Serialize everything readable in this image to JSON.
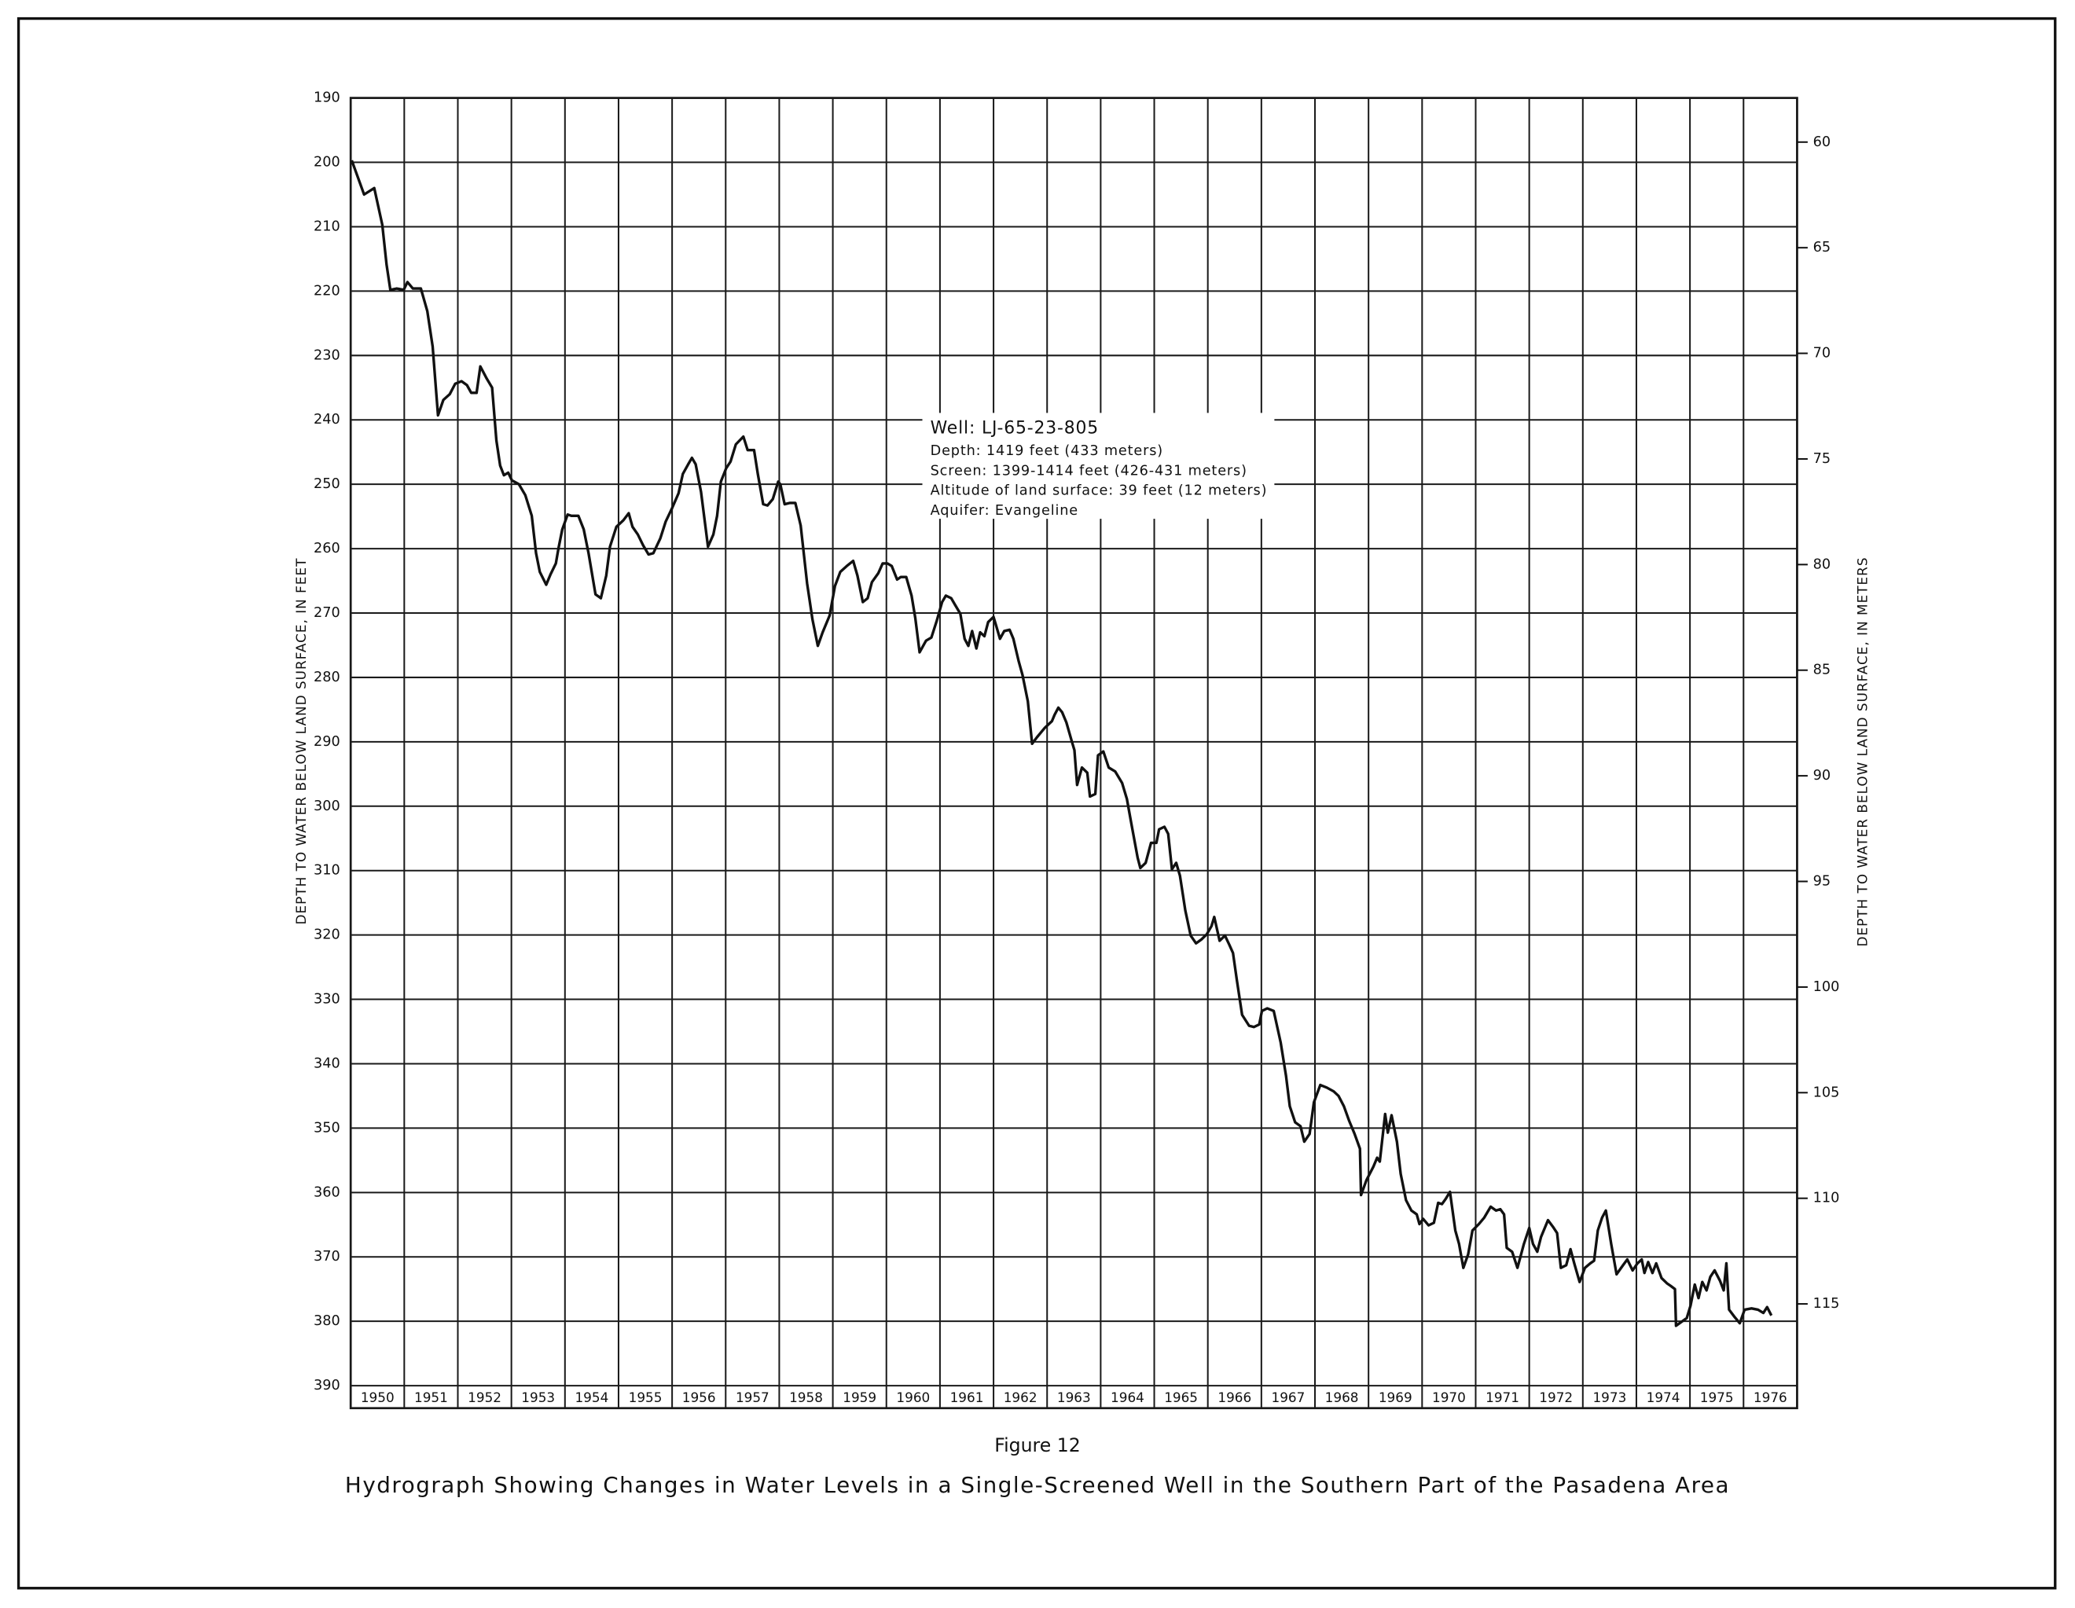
{
  "chart_data": {
    "type": "line",
    "figure_number": "Figure 12",
    "title": "Hydrograph Showing Changes in Water Levels in a Single-Screened Well in the Southern Part of the Pasadena Area",
    "ylabel": "DEPTH TO WATER BELOW LAND SURFACE, IN FEET",
    "y2label": "DEPTH TO WATER BELOW LAND SURFACE, IN METERS",
    "annotations": [
      "Well: LJ-65-23-805",
      "Depth: 1419 feet (433 meters)",
      "Screen: 1399-1414 feet (426-431 meters)",
      "Altitude of land surface: 39 feet (12 meters)",
      "Aquifer: Evangeline"
    ],
    "xlim": [
      1950,
      1977
    ],
    "xticks": [
      1950,
      1951,
      1952,
      1953,
      1954,
      1955,
      1956,
      1957,
      1958,
      1959,
      1960,
      1961,
      1962,
      1963,
      1964,
      1965,
      1966,
      1967,
      1968,
      1969,
      1970,
      1971,
      1972,
      1973,
      1974,
      1975,
      1976
    ],
    "ylim": [
      190,
      390
    ],
    "yticks": [
      190,
      200,
      210,
      220,
      230,
      240,
      250,
      260,
      270,
      280,
      290,
      300,
      310,
      320,
      330,
      340,
      350,
      360,
      370,
      380,
      390
    ],
    "y_inverted": true,
    "y2lim": [
      57.91,
      118.87
    ],
    "y2ticks": [
      60,
      65,
      70,
      75,
      80,
      85,
      90,
      95,
      100,
      105,
      110,
      115
    ],
    "grid": true,
    "color": "#111111",
    "x": [
      1950.02,
      1950.25,
      1950.44,
      1950.59,
      1950.67,
      1950.74,
      1950.86,
      1950.99,
      1951.06,
      1951.16,
      1951.31,
      1951.43,
      1951.53,
      1951.63,
      1951.73,
      1951.85,
      1951.95,
      1952.07,
      1952.17,
      1952.25,
      1952.35,
      1952.42,
      1952.54,
      1952.64,
      1952.72,
      1952.79,
      1952.86,
      1952.94,
      1953.01,
      1953.14,
      1953.26,
      1953.38,
      1953.46,
      1953.53,
      1953.65,
      1953.73,
      1953.83,
      1953.88,
      1953.95,
      1954.05,
      1954.12,
      1954.25,
      1954.35,
      1954.44,
      1954.57,
      1954.67,
      1954.77,
      1954.84,
      1954.96,
      1955.09,
      1955.19,
      1955.26,
      1955.36,
      1955.46,
      1955.56,
      1955.65,
      1955.78,
      1955.88,
      1956.0,
      1956.12,
      1956.2,
      1956.3,
      1956.37,
      1956.44,
      1956.54,
      1956.67,
      1956.77,
      1956.84,
      1956.91,
      1957.01,
      1957.09,
      1957.19,
      1957.33,
      1957.41,
      1957.53,
      1957.6,
      1957.7,
      1957.78,
      1957.88,
      1957.98,
      1958.02,
      1958.1,
      1958.2,
      1958.3,
      1958.4,
      1958.52,
      1958.62,
      1958.72,
      1958.81,
      1958.94,
      1959.04,
      1959.14,
      1959.26,
      1959.38,
      1959.46,
      1959.56,
      1959.65,
      1959.73,
      1959.85,
      1959.93,
      1960.02,
      1960.1,
      1960.2,
      1960.27,
      1960.37,
      1960.47,
      1960.54,
      1960.62,
      1960.74,
      1960.84,
      1960.94,
      1961.04,
      1961.11,
      1961.21,
      1961.28,
      1961.38,
      1961.46,
      1961.53,
      1961.6,
      1961.68,
      1961.75,
      1961.83,
      1961.9,
      1962.0,
      1962.05,
      1962.12,
      1962.2,
      1962.3,
      1962.37,
      1962.47,
      1962.54,
      1962.64,
      1962.72,
      1962.81,
      1962.96,
      1963.09,
      1963.14,
      1963.21,
      1963.28,
      1963.36,
      1963.46,
      1963.51,
      1963.56,
      1963.65,
      1963.75,
      1963.8,
      1963.9,
      1963.95,
      1964.05,
      1964.15,
      1964.27,
      1964.4,
      1964.49,
      1964.57,
      1964.69,
      1964.74,
      1964.84,
      1964.94,
      1965.04,
      1965.09,
      1965.19,
      1965.26,
      1965.33,
      1965.41,
      1965.48,
      1965.58,
      1965.68,
      1965.78,
      1965.88,
      1965.98,
      1966.07,
      1966.12,
      1966.22,
      1966.32,
      1966.4,
      1966.47,
      1966.54,
      1966.64,
      1966.77,
      1966.86,
      1966.96,
      1967.01,
      1967.11,
      1967.23,
      1967.36,
      1967.46,
      1967.53,
      1967.63,
      1967.73,
      1967.8,
      1967.9,
      1967.98,
      1968.1,
      1968.22,
      1968.35,
      1968.44,
      1968.54,
      1968.64,
      1968.74,
      1968.84,
      1968.86,
      1968.96,
      1969.09,
      1969.16,
      1969.21,
      1969.31,
      1969.36,
      1969.43,
      1969.53,
      1969.6,
      1969.7,
      1969.8,
      1969.9,
      1969.95,
      1970.02,
      1970.12,
      1970.22,
      1970.3,
      1970.37,
      1970.44,
      1970.52,
      1970.62,
      1970.69,
      1970.77,
      1970.86,
      1970.94,
      1971.06,
      1971.16,
      1971.28,
      1971.38,
      1971.46,
      1971.53,
      1971.58,
      1971.68,
      1971.78,
      1971.9,
      1972.0,
      1972.07,
      1972.15,
      1972.22,
      1972.35,
      1972.44,
      1972.52,
      1972.59,
      1972.69,
      1972.77,
      1972.84,
      1972.94,
      1973.04,
      1973.14,
      1973.21,
      1973.28,
      1973.36,
      1973.43,
      1973.53,
      1973.63,
      1973.75,
      1973.83,
      1973.93,
      1974.02,
      1974.1,
      1974.15,
      1974.22,
      1974.3,
      1974.37,
      1974.47,
      1974.57,
      1974.64,
      1974.72,
      1974.74,
      1974.84,
      1974.94,
      1975.01,
      1975.09,
      1975.16,
      1975.23,
      1975.31,
      1975.38,
      1975.46,
      1975.56,
      1975.63,
      1975.68,
      1975.73,
      1975.83,
      1975.93,
      1976.02,
      1976.15,
      1976.27,
      1976.37,
      1976.44,
      1976.52
    ],
    "values": [
      199.7,
      205.0,
      204.0,
      209.7,
      215.9,
      219.8,
      219.6,
      219.8,
      218.6,
      219.6,
      219.6,
      223.1,
      228.6,
      239.3,
      236.9,
      236.0,
      234.4,
      234.0,
      234.6,
      235.8,
      235.8,
      231.7,
      233.6,
      235.0,
      243.2,
      247.1,
      248.6,
      248.2,
      249.4,
      250.0,
      251.7,
      254.9,
      260.7,
      263.6,
      265.6,
      264.0,
      262.3,
      259.9,
      257.0,
      254.7,
      254.9,
      254.9,
      257.0,
      260.7,
      267.1,
      267.7,
      264.2,
      259.7,
      256.6,
      255.6,
      254.5,
      256.6,
      257.8,
      259.5,
      260.9,
      260.7,
      258.4,
      255.8,
      253.7,
      251.4,
      248.4,
      246.9,
      245.9,
      246.9,
      251.2,
      259.7,
      257.8,
      254.9,
      249.6,
      247.5,
      246.5,
      243.8,
      242.6,
      244.7,
      244.7,
      248.4,
      253.1,
      253.3,
      252.3,
      249.6,
      250.0,
      253.1,
      252.9,
      252.9,
      256.4,
      265.4,
      271.0,
      275.1,
      273.0,
      270.4,
      265.8,
      263.6,
      262.7,
      261.9,
      264.2,
      268.3,
      267.7,
      265.2,
      263.8,
      262.3,
      262.3,
      262.7,
      264.8,
      264.4,
      264.4,
      267.3,
      270.8,
      276.1,
      274.3,
      273.8,
      271.2,
      268.3,
      267.3,
      267.7,
      268.7,
      270.1,
      274.0,
      275.1,
      272.8,
      275.5,
      273.0,
      273.6,
      271.4,
      270.6,
      272.0,
      274.0,
      272.8,
      272.6,
      274.0,
      277.5,
      279.6,
      283.7,
      290.3,
      289.3,
      287.8,
      286.8,
      285.8,
      284.7,
      285.4,
      287.0,
      289.9,
      291.3,
      296.7,
      294.0,
      294.8,
      298.5,
      298.1,
      292.1,
      291.5,
      294.0,
      294.6,
      296.4,
      298.9,
      302.6,
      308.0,
      309.6,
      308.8,
      305.7,
      305.7,
      303.6,
      303.2,
      304.3,
      309.8,
      308.8,
      310.8,
      316.2,
      320.1,
      321.3,
      320.7,
      319.9,
      318.6,
      317.2,
      320.9,
      320.1,
      321.5,
      322.8,
      326.9,
      332.4,
      334.1,
      334.3,
      333.9,
      331.8,
      331.4,
      331.8,
      336.7,
      341.9,
      346.6,
      349.1,
      349.7,
      352.1,
      350.9,
      346.0,
      343.3,
      343.7,
      344.3,
      345.0,
      346.6,
      348.9,
      350.9,
      353.2,
      360.4,
      358.1,
      356.0,
      354.6,
      355.2,
      347.8,
      350.7,
      348.0,
      352.1,
      357.1,
      361.2,
      362.8,
      363.4,
      364.9,
      364.1,
      365.1,
      364.7,
      361.6,
      361.8,
      361.0,
      359.9,
      365.9,
      368.0,
      371.7,
      369.6,
      365.9,
      364.9,
      363.9,
      362.2,
      362.8,
      362.6,
      363.4,
      368.6,
      369.2,
      371.7,
      368.0,
      365.5,
      368.0,
      369.2,
      366.9,
      364.3,
      365.3,
      366.3,
      371.7,
      371.3,
      368.8,
      371.0,
      373.9,
      371.7,
      371.0,
      370.6,
      365.9,
      363.9,
      362.8,
      368.0,
      372.7,
      371.3,
      370.4,
      372.1,
      371.0,
      370.4,
      372.5,
      370.8,
      372.5,
      371.0,
      373.3,
      374.1,
      374.5,
      375.0,
      380.7,
      380.1,
      379.5,
      377.6,
      374.3,
      376.4,
      373.9,
      375.2,
      373.1,
      372.1,
      373.7,
      375.2,
      371.0,
      378.2,
      379.3,
      380.3,
      378.2,
      378.0,
      378.2,
      378.7,
      377.8,
      379.1
    ]
  }
}
